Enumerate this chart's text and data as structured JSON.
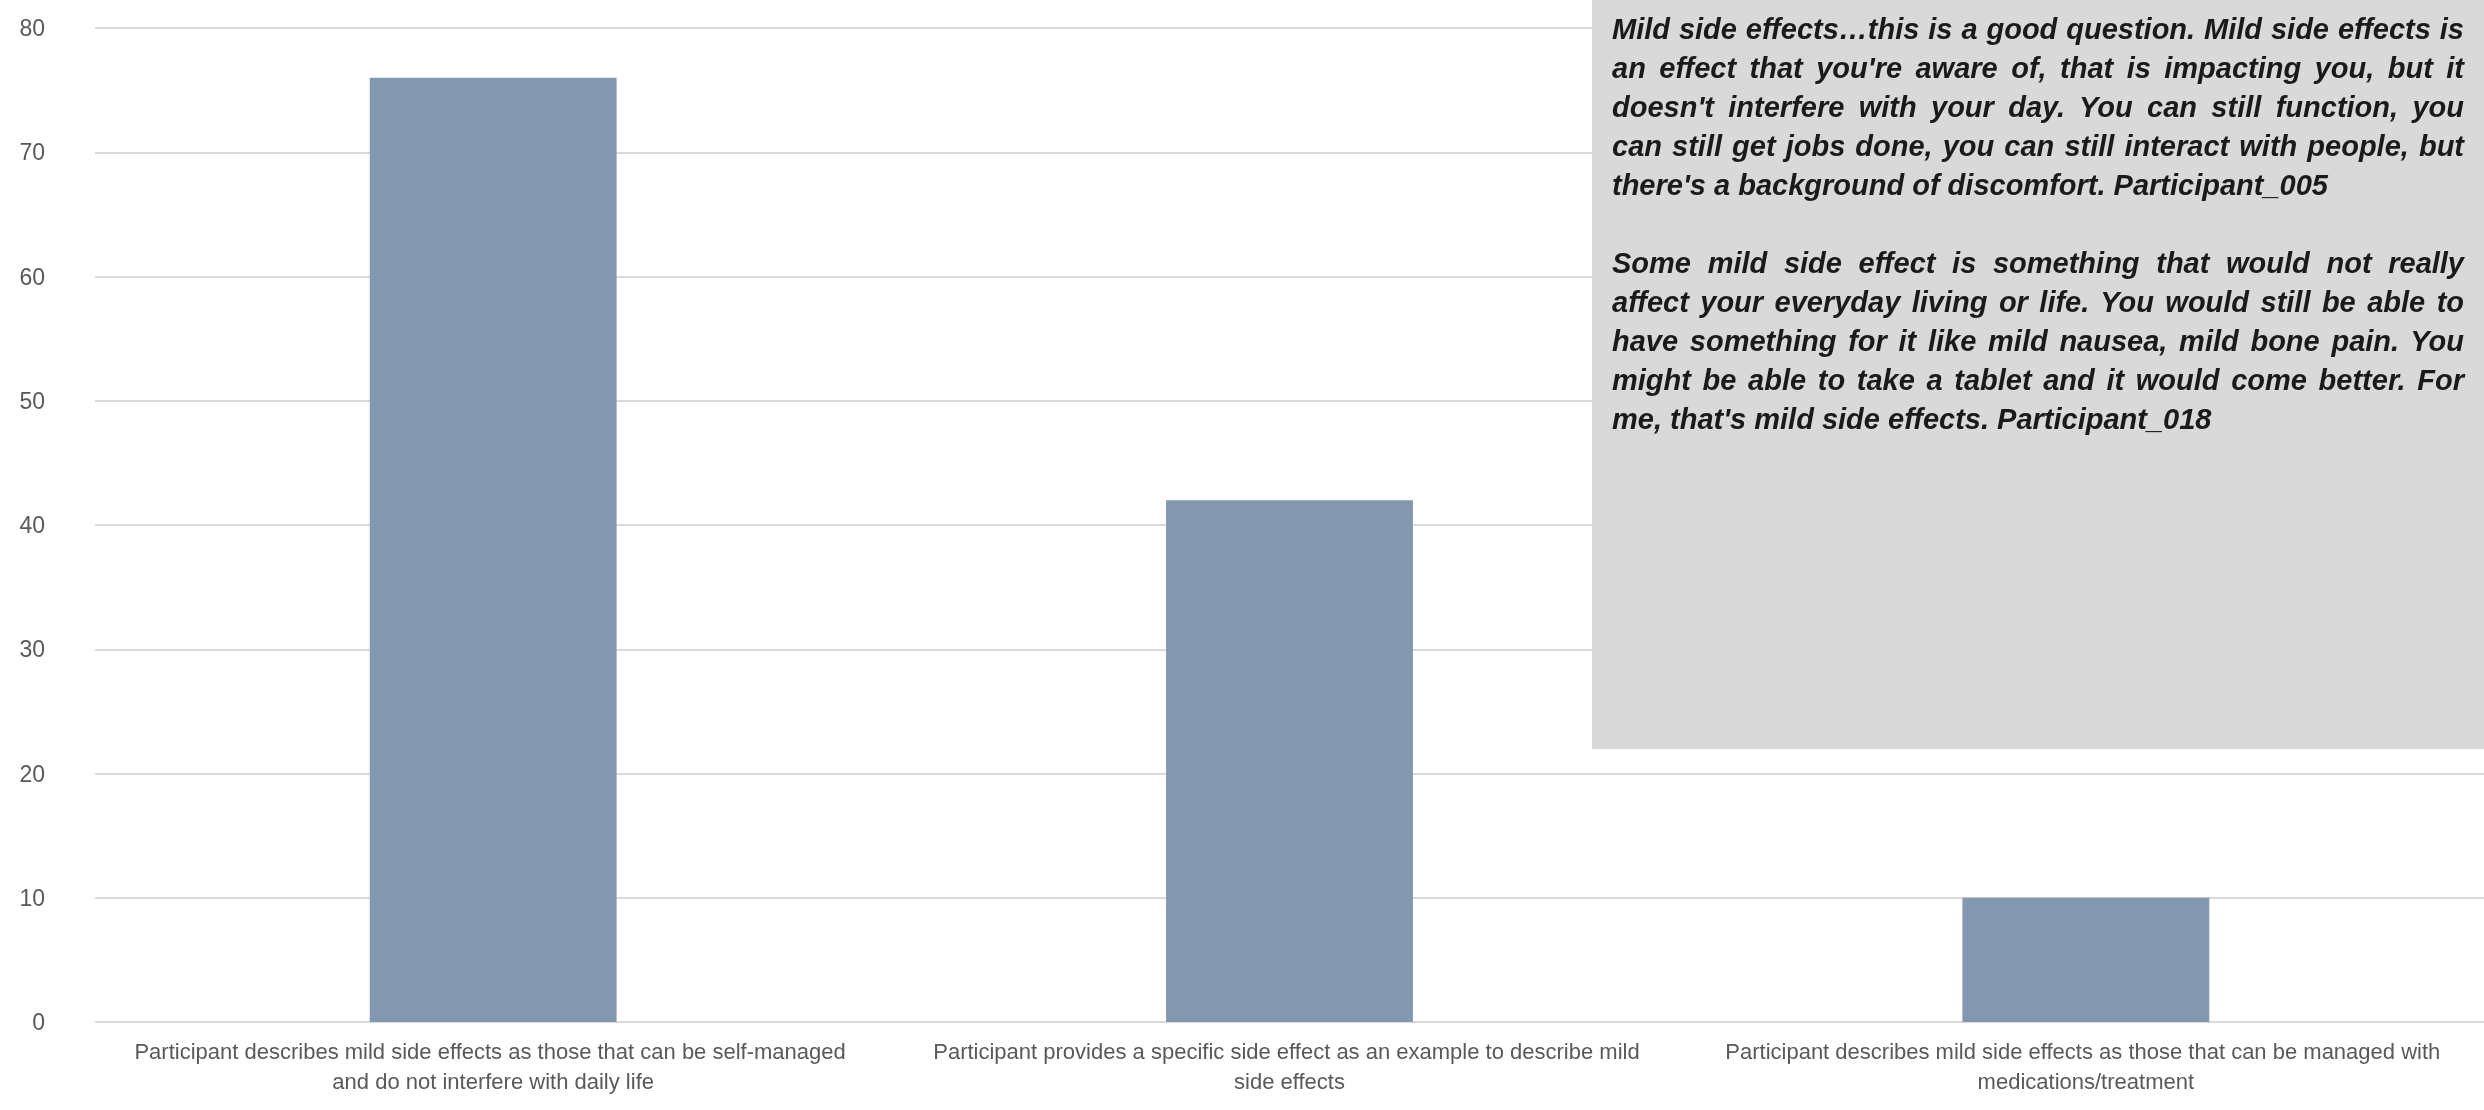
{
  "chart_data": {
    "type": "bar",
    "categories": [
      "Participant describes mild side effects as those that can be self-managed and do not interfere with daily life",
      "Participant provides a specific side effect as an example to describe mild side effects",
      "Participant describes mild side effects as those that can be managed with medications/treatment"
    ],
    "values": [
      76,
      42,
      10
    ],
    "color": "#8497b0",
    "ylim": [
      0,
      80
    ],
    "yticks": [
      0,
      10,
      20,
      30,
      40,
      50,
      60,
      70,
      80
    ],
    "grid": "y",
    "annotations": [
      "Mild side effects…this is a good question. Mild side effects is an effect that you're aware of, that is impacting you, but it doesn't interfere with your day. You can still function, you can still get jobs done, you can still interact with people, but there's a background of discomfort. Participant_005",
      "Some mild side effect is something that would not really affect your everyday living or life. You would still be able to have something for it like mild nausea, mild bone pain. You might be able to take a tablet and it would come better. For me, that's mild side effects. Participant_018"
    ]
  }
}
